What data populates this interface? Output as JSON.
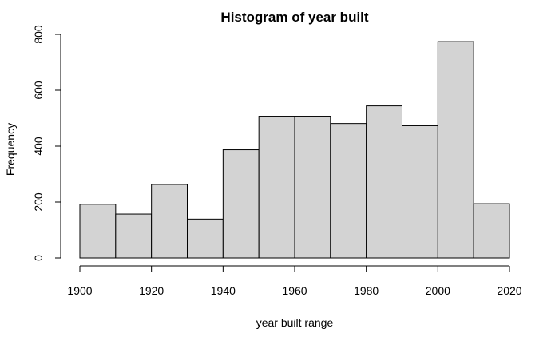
{
  "chart_data": {
    "type": "bar",
    "title": "Histogram of year built",
    "xlabel": "year built range",
    "ylabel": "Frequency",
    "bins": [
      {
        "from": 1900,
        "to": 1910,
        "value": 192
      },
      {
        "from": 1910,
        "to": 1920,
        "value": 157
      },
      {
        "from": 1920,
        "to": 1930,
        "value": 263
      },
      {
        "from": 1930,
        "to": 1940,
        "value": 139
      },
      {
        "from": 1940,
        "to": 1950,
        "value": 387
      },
      {
        "from": 1950,
        "to": 1960,
        "value": 507
      },
      {
        "from": 1960,
        "to": 1970,
        "value": 507
      },
      {
        "from": 1970,
        "to": 1980,
        "value": 481
      },
      {
        "from": 1980,
        "to": 1990,
        "value": 544
      },
      {
        "from": 1990,
        "to": 2000,
        "value": 473
      },
      {
        "from": 2000,
        "to": 2010,
        "value": 774
      },
      {
        "from": 2010,
        "to": 2020,
        "value": 194
      }
    ],
    "xlim": [
      1900,
      2020
    ],
    "ylim": [
      0,
      800
    ],
    "x_ticks": [
      "1900",
      "1920",
      "1940",
      "1960",
      "1980",
      "2000",
      "2020"
    ],
    "y_ticks": [
      "0",
      "200",
      "400",
      "600",
      "800"
    ],
    "grid": false,
    "colors": {
      "bar_fill": "#d3d3d3",
      "bar_stroke": "#000000"
    }
  }
}
